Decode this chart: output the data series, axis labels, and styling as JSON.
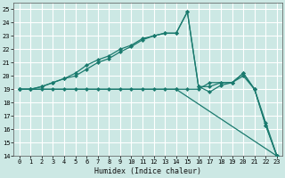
{
  "xlabel": "Humidex (Indice chaleur)",
  "ylabel": "",
  "xlim": [
    -0.5,
    23.5
  ],
  "ylim": [
    14,
    25.5
  ],
  "yticks": [
    14,
    15,
    16,
    17,
    18,
    19,
    20,
    21,
    22,
    23,
    24,
    25
  ],
  "xticks": [
    0,
    1,
    2,
    3,
    4,
    5,
    6,
    7,
    8,
    9,
    10,
    11,
    12,
    13,
    14,
    15,
    16,
    17,
    18,
    19,
    20,
    21,
    22,
    23
  ],
  "bg_color": "#cce8e4",
  "line_color": "#1a7a6e",
  "grid_color": "#ffffff",
  "series": [
    {
      "x": [
        0,
        1,
        2,
        3,
        4,
        5,
        6,
        7,
        8,
        9,
        10,
        11,
        12,
        13,
        14,
        15,
        16,
        17,
        18,
        19,
        20,
        21,
        22,
        23
      ],
      "y": [
        19,
        19,
        19.2,
        19.5,
        19.8,
        20.2,
        20.8,
        21.2,
        21.5,
        22.0,
        22.3,
        22.8,
        23.0,
        23.2,
        23.2,
        24.8,
        19.2,
        18.8,
        19.3,
        19.5,
        20.2,
        19.0,
        16.3,
        14.0
      ]
    },
    {
      "x": [
        0,
        1,
        2,
        3,
        4,
        5,
        6,
        7,
        8,
        9,
        10,
        11,
        12,
        13,
        14,
        15,
        16,
        17,
        18,
        19,
        20,
        21,
        22,
        23
      ],
      "y": [
        19,
        19,
        19.2,
        19.5,
        19.8,
        20.0,
        20.5,
        21.0,
        21.3,
        21.8,
        22.2,
        22.7,
        23.0,
        23.2,
        23.2,
        24.8,
        19.2,
        19.2,
        19.5,
        19.5,
        20.0,
        19.0,
        16.5,
        14.0
      ]
    },
    {
      "x": [
        0,
        14,
        23
      ],
      "y": [
        19,
        19,
        14.0
      ]
    },
    {
      "x": [
        0,
        1,
        2,
        3,
        4,
        5,
        6,
        7,
        8,
        9,
        10,
        11,
        12,
        13,
        14,
        15,
        16,
        17,
        18,
        19,
        20,
        21,
        22,
        23
      ],
      "y": [
        19,
        19,
        19,
        19,
        19,
        19,
        19,
        19,
        19,
        19,
        19,
        19,
        19,
        19,
        19,
        19,
        19,
        19.5,
        19.5,
        19.5,
        20.2,
        19.0,
        16.3,
        14.0
      ]
    }
  ]
}
